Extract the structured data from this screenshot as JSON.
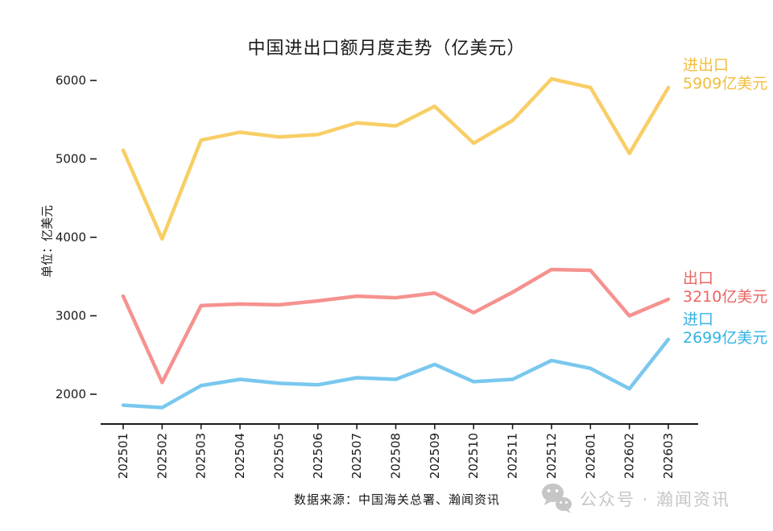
{
  "chart_data": {
    "type": "line",
    "title": "中国进出口额月度走势（亿美元）",
    "ylabel": "单位：亿美元",
    "xlabel": "",
    "categories": [
      "202501",
      "202502",
      "202503",
      "202504",
      "202505",
      "202506",
      "202507",
      "202508",
      "202509",
      "202510",
      "202511",
      "202512",
      "202601",
      "202602",
      "202603"
    ],
    "y_ticks": [
      2000,
      3000,
      4000,
      5000,
      6000
    ],
    "ylim": [
      1750,
      6250
    ],
    "grid": false,
    "legend_position": "right-at-line-ends",
    "series": [
      {
        "name": "进出口",
        "value_label": "5909亿美元",
        "latest_value": 5909,
        "color": "#F8CE66",
        "label_color": "#F1BD3E",
        "values": [
          5110,
          3980,
          5240,
          5340,
          5280,
          5310,
          5460,
          5420,
          5670,
          5200,
          5490,
          6020,
          5910,
          5070,
          5909
        ]
      },
      {
        "name": "出口",
        "value_label": "3210亿美元",
        "latest_value": 3210,
        "color": "#F5928F",
        "label_color": "#EB6462",
        "values": [
          3250,
          2150,
          3130,
          3150,
          3140,
          3190,
          3250,
          3230,
          3290,
          3040,
          3300,
          3590,
          3580,
          3000,
          3210
        ]
      },
      {
        "name": "进口",
        "value_label": "2699亿美元",
        "latest_value": 2699,
        "color": "#79C8EE",
        "label_color": "#33B3E4",
        "values": [
          1860,
          1830,
          2110,
          2190,
          2140,
          2120,
          2210,
          2190,
          2380,
          2160,
          2190,
          2430,
          2330,
          2070,
          2699
        ]
      }
    ]
  },
  "footer": {
    "source_text": "数据来源：中国海关总署、瀚闻资讯"
  },
  "watermark": {
    "icon": "wechat-icon",
    "text": "公众号 · 瀚闻资讯",
    "color": "#C6C6C6"
  },
  "colors": {
    "text": "#1A1A1A",
    "axis": "#1A1A1A",
    "background": "#FFFFFF"
  }
}
